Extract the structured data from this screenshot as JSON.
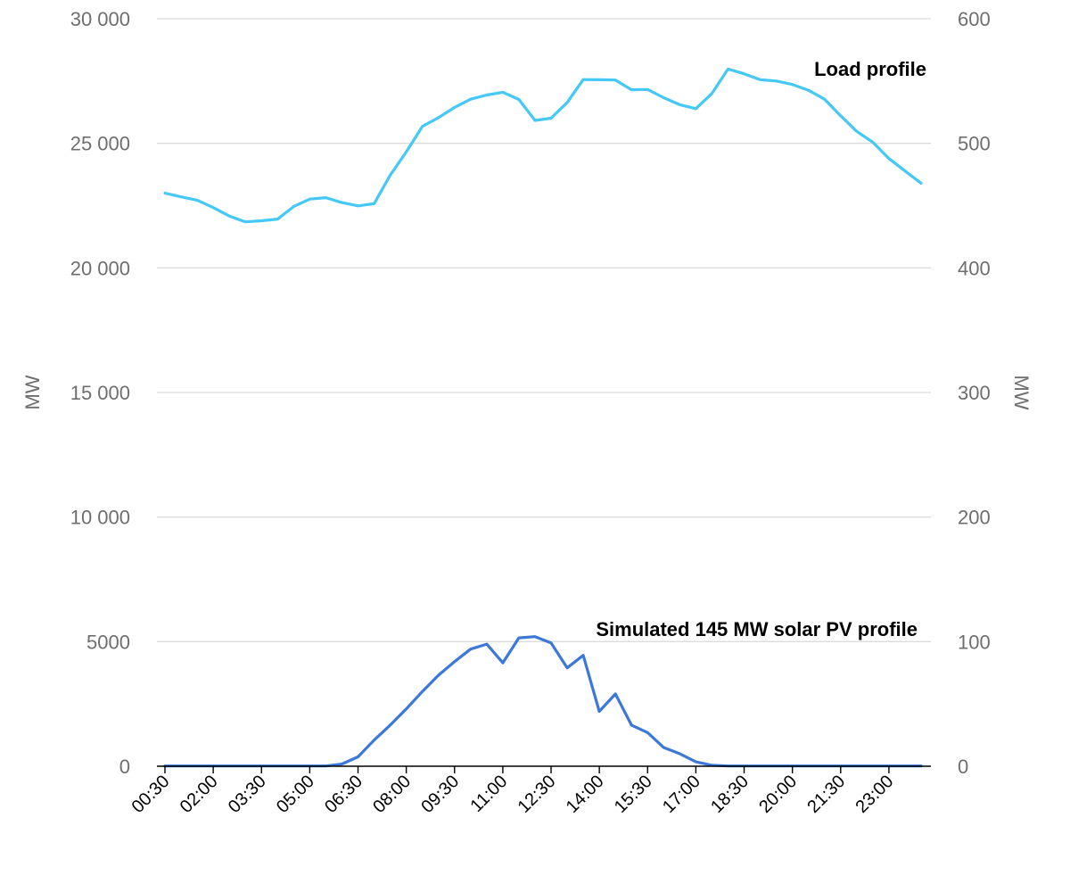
{
  "chart_data": {
    "type": "line",
    "title": "",
    "y_left": {
      "label": "MW",
      "range": [
        0,
        30000
      ],
      "ticks": [
        0,
        5000,
        10000,
        15000,
        20000,
        25000,
        30000
      ],
      "tick_labels": [
        "0",
        "5000",
        "10 000",
        "15 000",
        "20 000",
        "25 000",
        "30 000"
      ]
    },
    "y_right": {
      "label": "MW",
      "range": [
        0,
        600
      ],
      "ticks": [
        0,
        100,
        200,
        300,
        400,
        500,
        600
      ],
      "tick_labels": [
        "0",
        "100",
        "200",
        "300",
        "400",
        "500",
        "600"
      ]
    },
    "grid": true,
    "x_tick_labels": [
      "00:30",
      "02:00",
      "03:30",
      "05:00",
      "06:30",
      "08:00",
      "09:30",
      "11:00",
      "12:30",
      "14:00",
      "15:30",
      "17:00",
      "18:30",
      "20:00",
      "21:30",
      "23:00"
    ],
    "x_tick_every": 3,
    "x": [
      "00:30",
      "01:00",
      "01:30",
      "02:00",
      "02:30",
      "03:00",
      "03:30",
      "04:00",
      "04:30",
      "05:00",
      "05:30",
      "06:00",
      "06:30",
      "07:00",
      "07:30",
      "08:00",
      "08:30",
      "09:00",
      "09:30",
      "10:00",
      "10:30",
      "11:00",
      "11:30",
      "12:00",
      "12:30",
      "13:00",
      "13:30",
      "14:00",
      "14:30",
      "15:00",
      "15:30",
      "16:00",
      "16:30",
      "17:00",
      "17:30",
      "18:00",
      "18:30",
      "19:00",
      "19:30",
      "20:00",
      "20:30",
      "21:00",
      "21:30",
      "22:00",
      "22:30",
      "23:00",
      "23:30",
      "24:00"
    ],
    "series": [
      {
        "name": "Load profile",
        "axis": "left",
        "color": "#44c8f5",
        "values": [
          23000,
          22850,
          22720,
          22420,
          22080,
          21850,
          21890,
          21960,
          22460,
          22760,
          22820,
          22620,
          22490,
          22580,
          23720,
          24650,
          25680,
          26030,
          26440,
          26770,
          26940,
          27050,
          26760,
          25920,
          26010,
          26640,
          27560,
          27550,
          27540,
          27150,
          27160,
          26830,
          26550,
          26390,
          27000,
          27980,
          27790,
          27550,
          27500,
          27360,
          27130,
          26770,
          26100,
          25480,
          25040,
          24390,
          23890,
          23400
        ]
      },
      {
        "name": "Simulated 145 MW solar PV profile",
        "axis": "right",
        "color": "#3c78d8",
        "values": [
          0.2,
          0.2,
          0.2,
          0.2,
          0.2,
          0.2,
          0.2,
          0.2,
          0.2,
          0.2,
          0.2,
          1.8,
          7.5,
          21,
          33,
          46,
          60,
          73,
          84,
          94,
          98,
          83,
          103,
          104,
          99,
          79,
          89,
          44,
          58,
          33,
          27,
          15,
          10,
          3.5,
          0.8,
          0.2,
          0.2,
          0.2,
          0.2,
          0.2,
          0.2,
          0.2,
          0.2,
          0.2,
          0.2,
          0.2,
          0.2,
          0.2
        ]
      }
    ]
  }
}
